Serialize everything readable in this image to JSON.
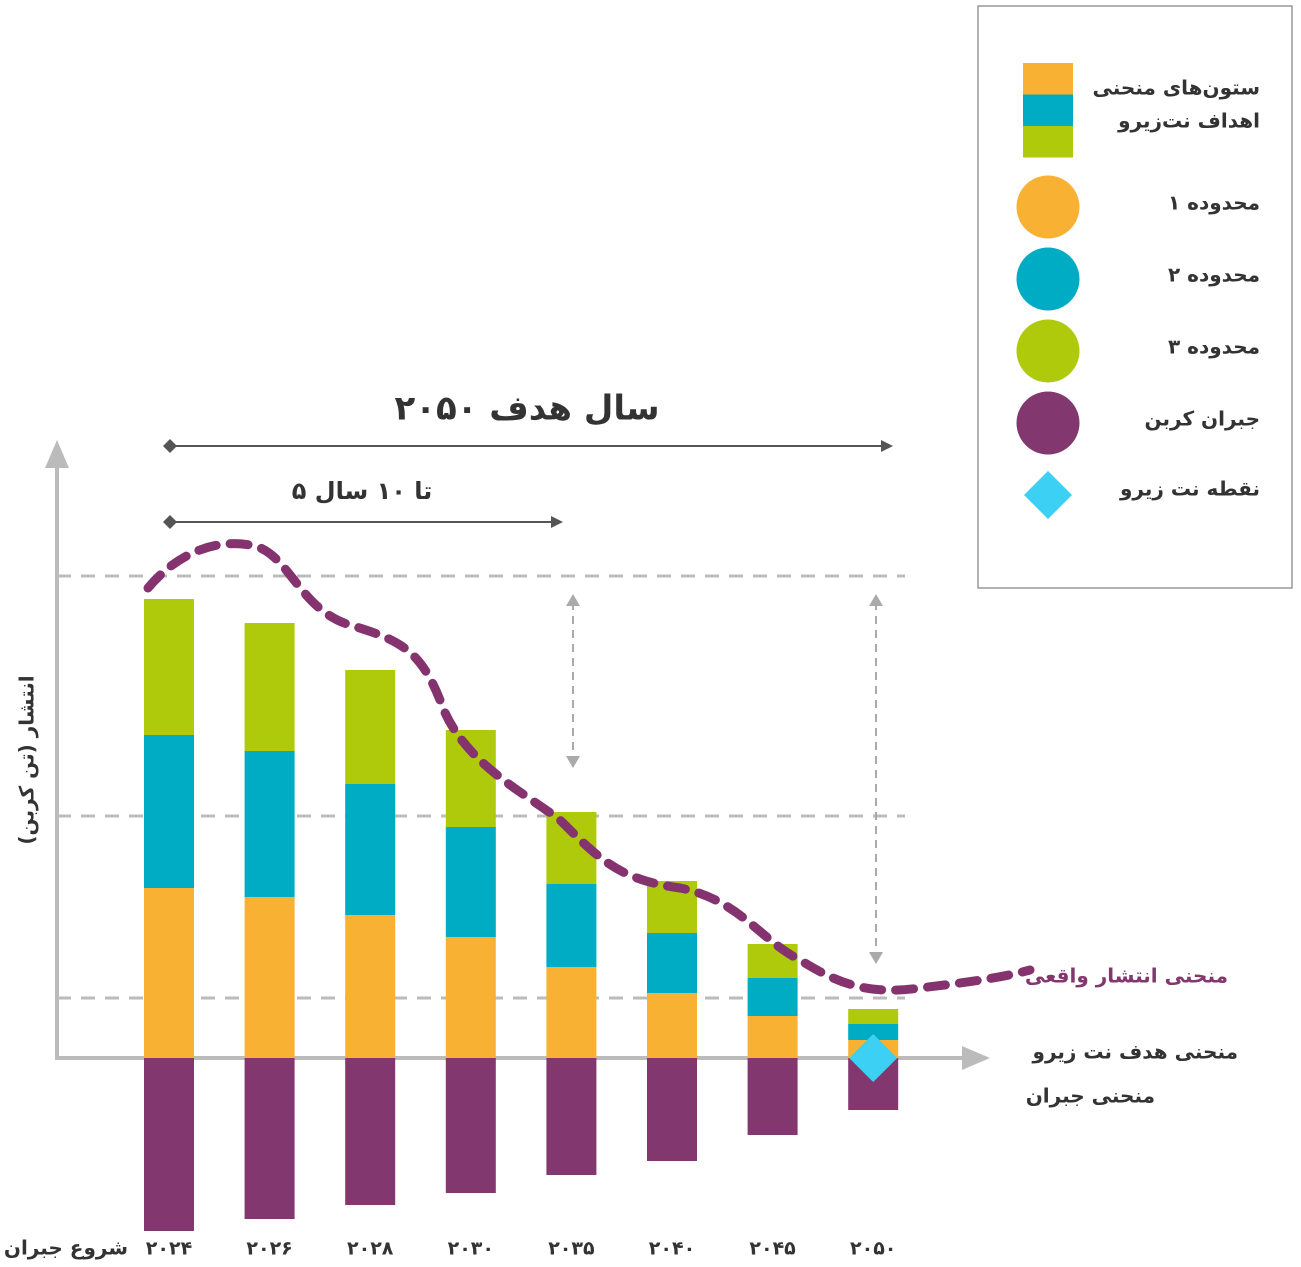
{
  "chart_data": {
    "type": "bar",
    "stacked": true,
    "title": "سال هدف ۲۰۵۰",
    "subtitle": "۵ تا ۱۰ سال",
    "y_label": "انتشار (تن کربن)",
    "x_start_label": "شروع جبران",
    "categories": [
      "۲۰۲۴",
      "۲۰۲۶",
      "۲۰۲۸",
      "۲۰۳۰",
      "۲۰۳۵",
      "۲۰۴۰",
      "۲۰۴۵",
      "۲۰۵۰"
    ],
    "series": [
      {
        "name": "محدوده ۱",
        "color": "#f8b133",
        "values": [
          17,
          16.1,
          14.3,
          12.1,
          9.1,
          6.5,
          4.2,
          1.8
        ]
      },
      {
        "name": "محدوده ۲",
        "color": "#00acc4",
        "values": [
          15.3,
          14.6,
          13.1,
          11,
          8.3,
          6,
          3.8,
          1.6
        ]
      },
      {
        "name": "محدوده ۳",
        "color": "#afca0b",
        "values": [
          13.6,
          12.8,
          11.4,
          9.7,
          7.2,
          5.2,
          3.4,
          1.5
        ]
      },
      {
        "name": "جبران کربن",
        "color": "#82386e",
        "values": [
          -17.3,
          -16.1,
          -14.7,
          -13.5,
          -11.7,
          -10.3,
          -7.7,
          -5.2
        ]
      }
    ],
    "ylim": [
      -18,
      60
    ],
    "legend_title": [
      "ستون‌های منحنی",
      "اهداف نت‌زیرو"
    ],
    "net_zero_point": {
      "name": "نقطه نت زیرو",
      "color": "#3dd0f5"
    },
    "curve_labels": {
      "actual": "منحنی انتشار واقعی",
      "target": "منحنی هدف نت زیرو",
      "offset": "منحنی جبران"
    },
    "legend": "top-right"
  }
}
